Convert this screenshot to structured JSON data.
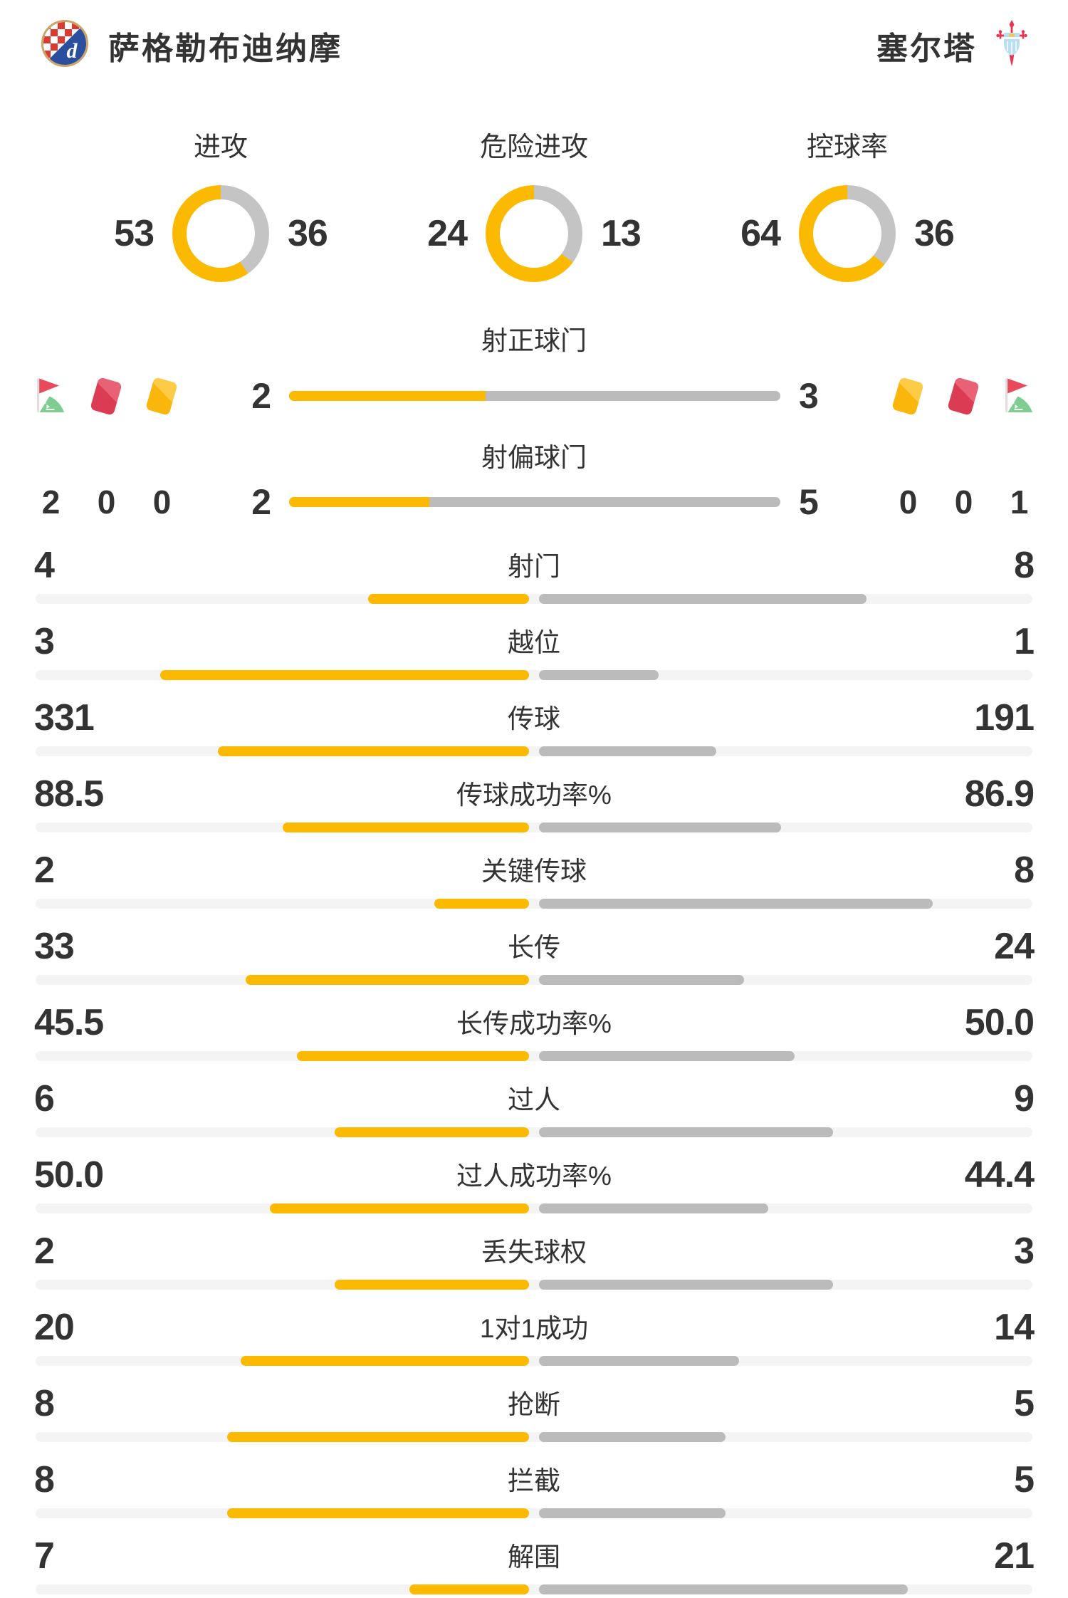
{
  "header": {
    "home": {
      "name": "萨格勒布迪纳摩",
      "crest_icon": "dinamo-zagreb-crest"
    },
    "away": {
      "name": "塞尔塔",
      "crest_icon": "celta-vigo-crest"
    }
  },
  "colors": {
    "home_bar": "#FBBA00",
    "away_bar": "#BBBBBB",
    "donut_away": "#C4C4C4",
    "track": "#F4F4F4",
    "text": "#333333",
    "red_card": "#DC3C53",
    "yellow_card": "#FBB60C",
    "corner_flag_red": "#E9495D",
    "corner_flag_green": "#7FCD91"
  },
  "donuts": [
    {
      "title": "进攻",
      "home": "53",
      "away": "36"
    },
    {
      "title": "危险进攻",
      "home": "24",
      "away": "13"
    },
    {
      "title": "控球率",
      "home": "64",
      "away": "36"
    }
  ],
  "discipline": {
    "home_icons": [
      "corner-flag-icon",
      "red-card-icon",
      "yellow-card-icon"
    ],
    "home_values": [
      "2",
      "0",
      "0"
    ],
    "away_icons": [
      "yellow-card-icon",
      "red-card-icon",
      "corner-flag-icon"
    ],
    "away_values": [
      "0",
      "0",
      "1"
    ]
  },
  "shot_rows": [
    {
      "label": "射正球门",
      "home": "2",
      "away": "3"
    },
    {
      "label": "射偏球门",
      "home": "2",
      "away": "5"
    }
  ],
  "stats": [
    {
      "label": "射门",
      "home": "4",
      "away": "8"
    },
    {
      "label": "越位",
      "home": "3",
      "away": "1"
    },
    {
      "label": "传球",
      "home": "331",
      "away": "191"
    },
    {
      "label": "传球成功率%",
      "home": "88.5",
      "away": "86.9"
    },
    {
      "label": "关键传球",
      "home": "2",
      "away": "8"
    },
    {
      "label": "长传",
      "home": "33",
      "away": "24"
    },
    {
      "label": "长传成功率%",
      "home": "45.5",
      "away": "50.0"
    },
    {
      "label": "过人",
      "home": "6",
      "away": "9"
    },
    {
      "label": "过人成功率%",
      "home": "50.0",
      "away": "44.4"
    },
    {
      "label": "丢失球权",
      "home": "2",
      "away": "3"
    },
    {
      "label": "1对1成功",
      "home": "20",
      "away": "14"
    },
    {
      "label": "抢断",
      "home": "8",
      "away": "5"
    },
    {
      "label": "拦截",
      "home": "8",
      "away": "5"
    },
    {
      "label": "解围",
      "home": "7",
      "away": "21"
    }
  ]
}
